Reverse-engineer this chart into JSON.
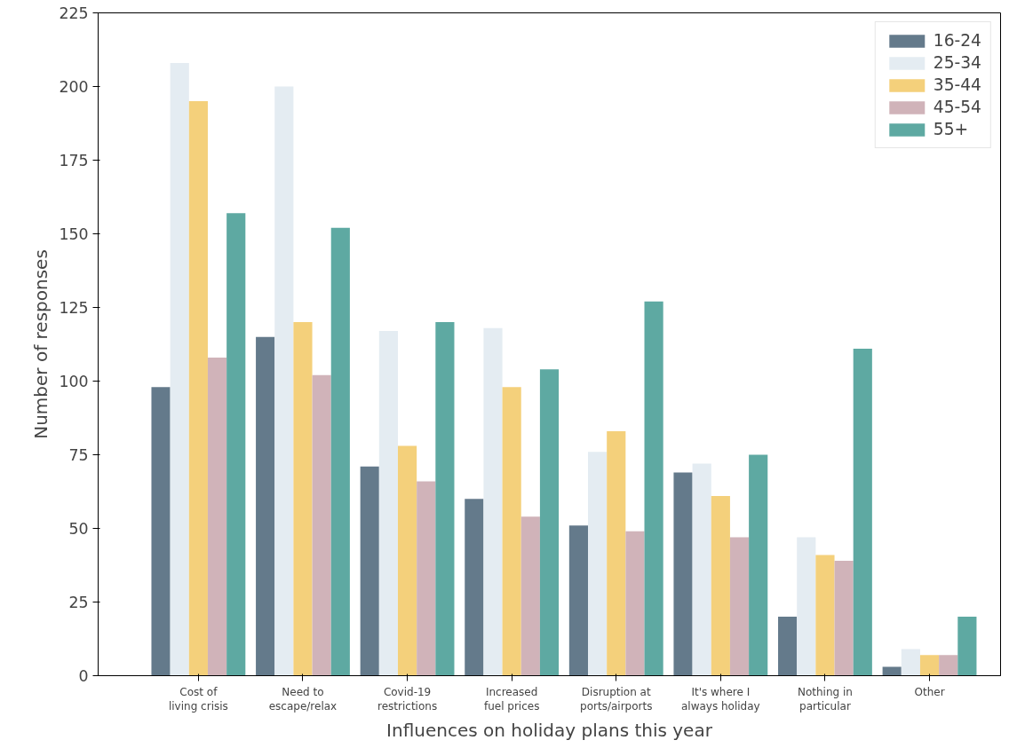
{
  "chart_data": {
    "type": "bar",
    "xlabel": "Influences on holiday plans this year",
    "ylabel": "Number of responses",
    "categories": [
      "Cost of\nliving crisis",
      "Need to\nescape/relax",
      "Covid-19\nrestrictions",
      "Increased\nfuel prices",
      "Disruption at\nports/airports",
      "It's where I\nalways holiday",
      "Nothing in\nparticular",
      "Other"
    ],
    "series": [
      {
        "name": "16-24",
        "color": "#647a8b",
        "values": [
          98,
          115,
          71,
          60,
          51,
          69,
          20,
          3
        ]
      },
      {
        "name": "25-34",
        "color": "#e4ecf2",
        "values": [
          208,
          200,
          117,
          118,
          76,
          72,
          47,
          9
        ]
      },
      {
        "name": "35-44",
        "color": "#f4d07b",
        "values": [
          195,
          120,
          78,
          98,
          83,
          61,
          41,
          7
        ]
      },
      {
        "name": "45-54",
        "color": "#d0b3b9",
        "values": [
          108,
          102,
          66,
          54,
          49,
          47,
          39,
          7
        ]
      },
      {
        "name": "55+",
        "color": "#5ea9a2",
        "values": [
          157,
          152,
          120,
          104,
          127,
          75,
          111,
          20
        ]
      }
    ],
    "ylim": [
      0,
      225
    ],
    "yticks": [
      0,
      25,
      50,
      75,
      100,
      125,
      150,
      175,
      200,
      225
    ],
    "grid": false,
    "legend": "top right"
  }
}
